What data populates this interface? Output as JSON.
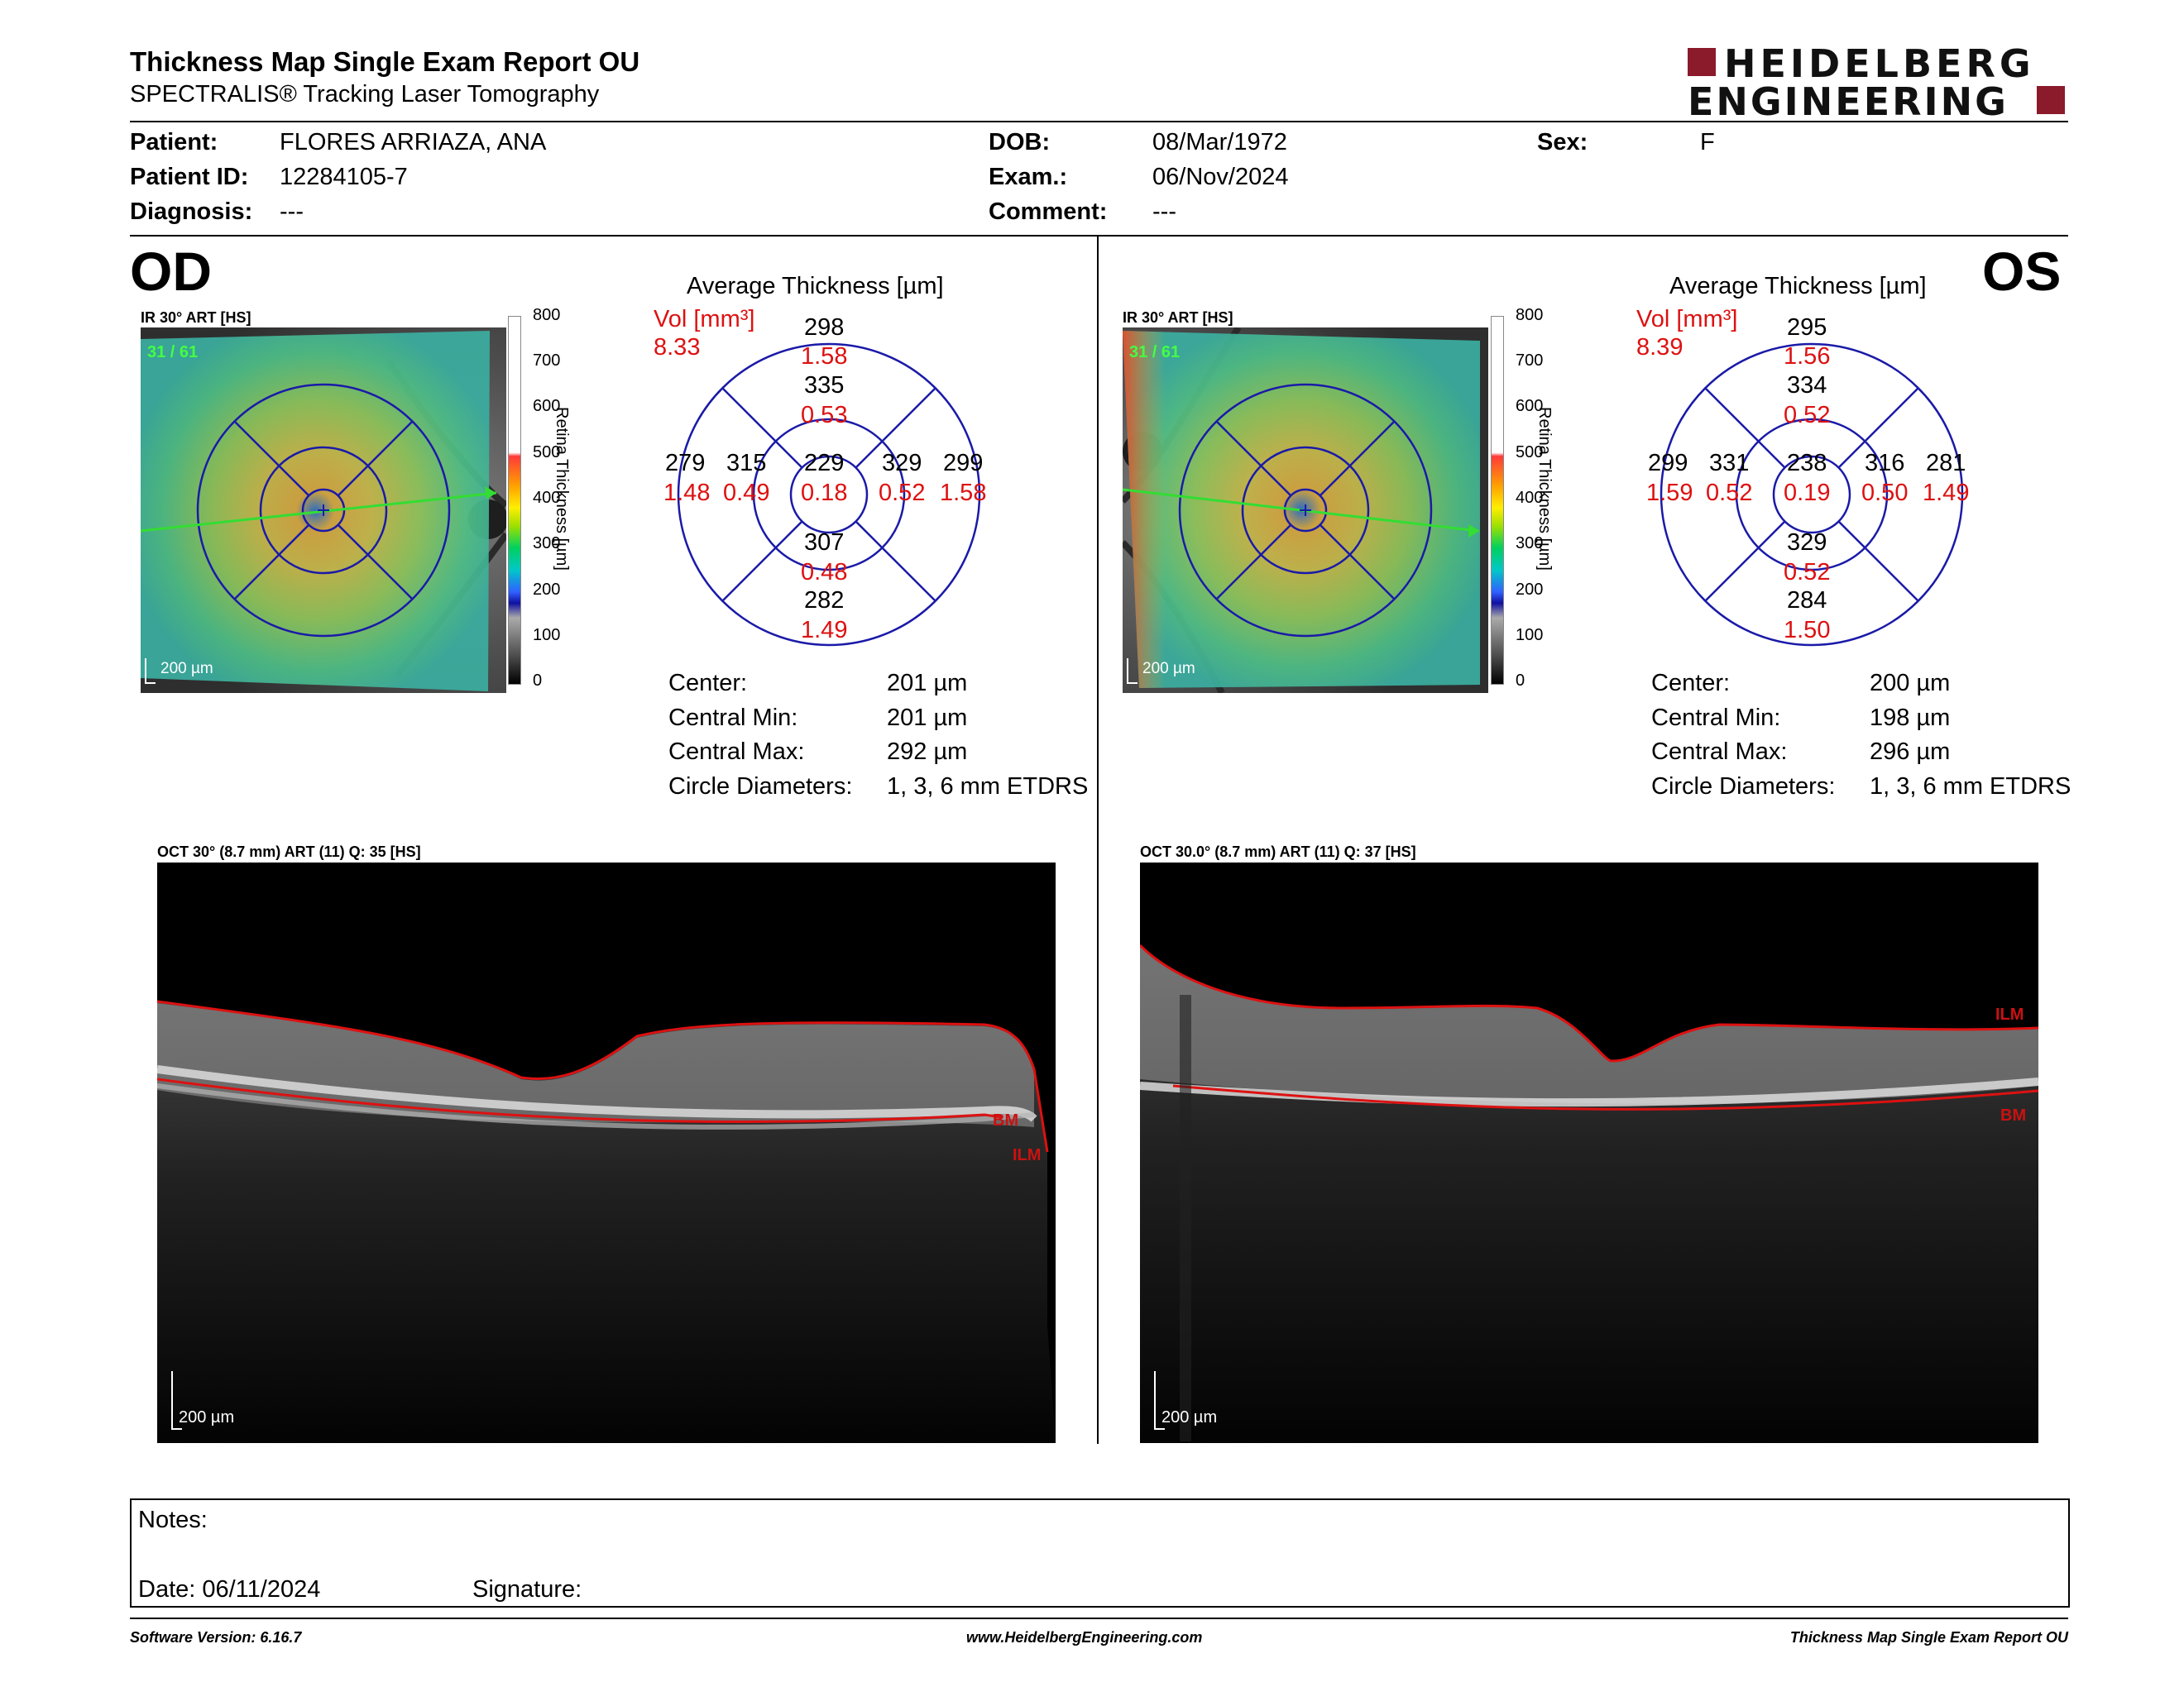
{
  "header": {
    "title": "Thickness Map Single Exam Report OU",
    "subtitle": "SPECTRALIS® Tracking Laser Tomography",
    "logo_line1": "HEIDELBERG",
    "logo_line2": "ENGINEERING"
  },
  "patient": {
    "patient_label": "Patient:",
    "patient_value": "FLORES ARRIAZA, ANA",
    "id_label": "Patient ID:",
    "id_value": "12284105-7",
    "diagnosis_label": "Diagnosis:",
    "diagnosis_value": "---",
    "dob_label": "DOB:",
    "dob_value": "08/Mar/1972",
    "exam_label": "Exam.:",
    "exam_value": "06/Nov/2024",
    "comment_label": "Comment:",
    "comment_value": "---",
    "sex_label": "Sex:",
    "sex_value": "F"
  },
  "colors": {
    "brand": "#8b1a2b",
    "grid": "#1a1aa8",
    "red": "#dd1111",
    "scan_line": "#33dd33"
  },
  "scale_ticks": [
    "800",
    "700",
    "600",
    "500",
    "400",
    "300",
    "200",
    "100",
    "0"
  ],
  "scale_label": "Retina Thickness [µm]",
  "od": {
    "eye": "OD",
    "ir_title": "IR 30° ART [HS]",
    "ir_count": "31 / 61",
    "ir_scale": "200 µm",
    "avg_title": "Average Thickness [µm]",
    "vol_label": "Vol [mm³]",
    "vol_value": "8.33",
    "sectors": {
      "center_t": "229",
      "center_v": "0.18",
      "inner_sup_t": "335",
      "inner_sup_v": "0.53",
      "inner_inf_t": "307",
      "inner_inf_v": "0.48",
      "inner_left_t": "315",
      "inner_left_v": "0.49",
      "inner_right_t": "329",
      "inner_right_v": "0.52",
      "outer_sup_t": "298",
      "outer_sup_v": "1.58",
      "outer_inf_t": "282",
      "outer_inf_v": "1.49",
      "outer_left_t": "279",
      "outer_left_v": "1.48",
      "outer_right_t": "299",
      "outer_right_v": "1.58"
    },
    "stats": {
      "center_label": "Center:",
      "center_value": "201 µm",
      "min_label": "Central Min:",
      "min_value": "201 µm",
      "max_label": "Central Max:",
      "max_value": "292 µm",
      "diam_label": "Circle Diameters:",
      "diam_value": "1, 3, 6 mm ETDRS"
    },
    "oct_title": "OCT 30° (8.7 mm) ART (11) Q: 35 [HS]",
    "oct_scale": "200 µm",
    "label_bm": "BM",
    "label_ilm": "ILM"
  },
  "os": {
    "eye": "OS",
    "ir_title": "IR 30° ART [HS]",
    "ir_count": "31 / 61",
    "ir_scale": "200 µm",
    "avg_title": "Average Thickness [µm]",
    "vol_label": "Vol [mm³]",
    "vol_value": "8.39",
    "sectors": {
      "center_t": "238",
      "center_v": "0.19",
      "inner_sup_t": "334",
      "inner_sup_v": "0.52",
      "inner_inf_t": "329",
      "inner_inf_v": "0.52",
      "inner_left_t": "331",
      "inner_left_v": "0.52",
      "inner_right_t": "316",
      "inner_right_v": "0.50",
      "outer_sup_t": "295",
      "outer_sup_v": "1.56",
      "outer_inf_t": "284",
      "outer_inf_v": "1.50",
      "outer_left_t": "299",
      "outer_left_v": "1.59",
      "outer_right_t": "281",
      "outer_right_v": "1.49"
    },
    "stats": {
      "center_label": "Center:",
      "center_value": "200 µm",
      "min_label": "Central Min:",
      "min_value": "198 µm",
      "max_label": "Central Max:",
      "max_value": "296 µm",
      "diam_label": "Circle Diameters:",
      "diam_value": "1, 3, 6 mm ETDRS"
    },
    "oct_title": "OCT 30.0° (8.7 mm) ART (11) Q: 37 [HS]",
    "oct_scale": "200 µm",
    "label_ilm": "ILM",
    "label_bm": "BM"
  },
  "notes": {
    "notes_label": "Notes:",
    "date_label": "Date: 06/11/2024",
    "signature_label": "Signature:"
  },
  "footer": {
    "software": "Software Version: 6.16.7",
    "website": "www.HeidelbergEngineering.com",
    "report": "Thickness Map Single Exam Report OU"
  }
}
